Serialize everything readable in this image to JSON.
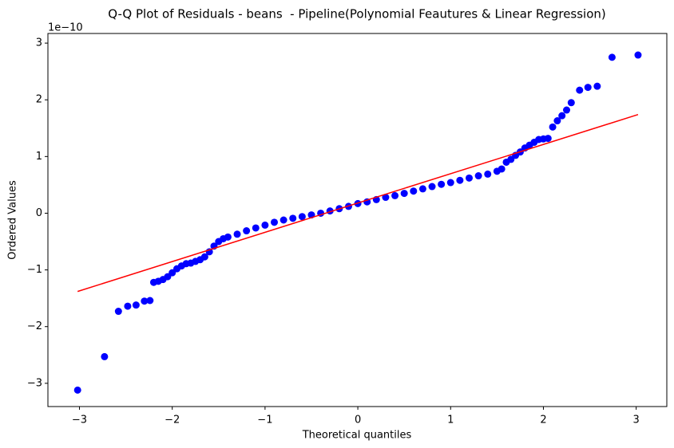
{
  "chart_data": {
    "type": "scatter",
    "title": "Q-Q Plot of Residuals - beans  - Pipeline(Polynomial Feautures & Linear Regression)",
    "x_label": "Theoretical quantiles",
    "y_label": "Ordered Values",
    "y_offset_label": "1e−10",
    "xlim": [
      -3.34,
      3.33
    ],
    "ylim": [
      -3.41,
      3.17
    ],
    "xticks": [
      {
        "value": -3,
        "label": "−3"
      },
      {
        "value": -2,
        "label": "−2"
      },
      {
        "value": -1,
        "label": "−1"
      },
      0,
      1,
      2,
      3
    ],
    "yticks": [
      {
        "value": -3,
        "label": "−3"
      },
      {
        "value": -2,
        "label": "−2"
      },
      {
        "value": -1,
        "label": "−1"
      },
      0,
      1,
      2,
      3
    ],
    "series": [
      {
        "color": "#0000ff",
        "x": [
          -3.02,
          -2.73,
          -2.58,
          -2.48,
          -2.39,
          -2.3,
          -2.24,
          -2.2,
          -2.15,
          -2.1,
          -2.05,
          -2.0,
          -1.95,
          -1.9,
          -1.85,
          -1.8,
          -1.75,
          -1.7,
          -1.65,
          -1.6,
          -1.55,
          -1.5,
          -1.45,
          -1.4,
          -1.3,
          -1.2,
          -1.1,
          -1.0,
          -0.9,
          -0.8,
          -0.7,
          -0.6,
          -0.5,
          -0.4,
          -0.3,
          -0.2,
          -0.1,
          0,
          0.1,
          0.2,
          0.3,
          0.4,
          0.5,
          0.6,
          0.7,
          0.8,
          0.9,
          1.0,
          1.1,
          1.2,
          1.3,
          1.4,
          1.5,
          1.55,
          1.6,
          1.65,
          1.7,
          1.75,
          1.8,
          1.85,
          1.9,
          1.95,
          2.0,
          2.05,
          2.1,
          2.15,
          2.2,
          2.25,
          2.3,
          2.39,
          2.48,
          2.58,
          2.74,
          3.02
        ],
        "values": [
          -3.12,
          -2.53,
          -1.73,
          -1.64,
          -1.62,
          -1.55,
          -1.54,
          -1.22,
          -1.2,
          -1.17,
          -1.12,
          -1.05,
          -0.98,
          -0.93,
          -0.89,
          -0.88,
          -0.85,
          -0.82,
          -0.77,
          -0.68,
          -0.58,
          -0.5,
          -0.45,
          -0.42,
          -0.37,
          -0.31,
          -0.26,
          -0.21,
          -0.16,
          -0.12,
          -0.09,
          -0.06,
          -0.03,
          0.0,
          0.04,
          0.08,
          0.12,
          0.17,
          0.2,
          0.24,
          0.28,
          0.31,
          0.35,
          0.39,
          0.43,
          0.47,
          0.51,
          0.54,
          0.58,
          0.62,
          0.66,
          0.69,
          0.74,
          0.78,
          0.9,
          0.95,
          1.02,
          1.08,
          1.15,
          1.2,
          1.25,
          1.3,
          1.31,
          1.32,
          1.52,
          1.63,
          1.72,
          1.82,
          1.95,
          2.17,
          2.22,
          2.24,
          2.75,
          2.79
        ]
      }
    ],
    "fit": {
      "color": "#ff0000",
      "x": [
        -3.02,
        3.02
      ],
      "values": [
        -1.38,
        1.74
      ]
    }
  }
}
